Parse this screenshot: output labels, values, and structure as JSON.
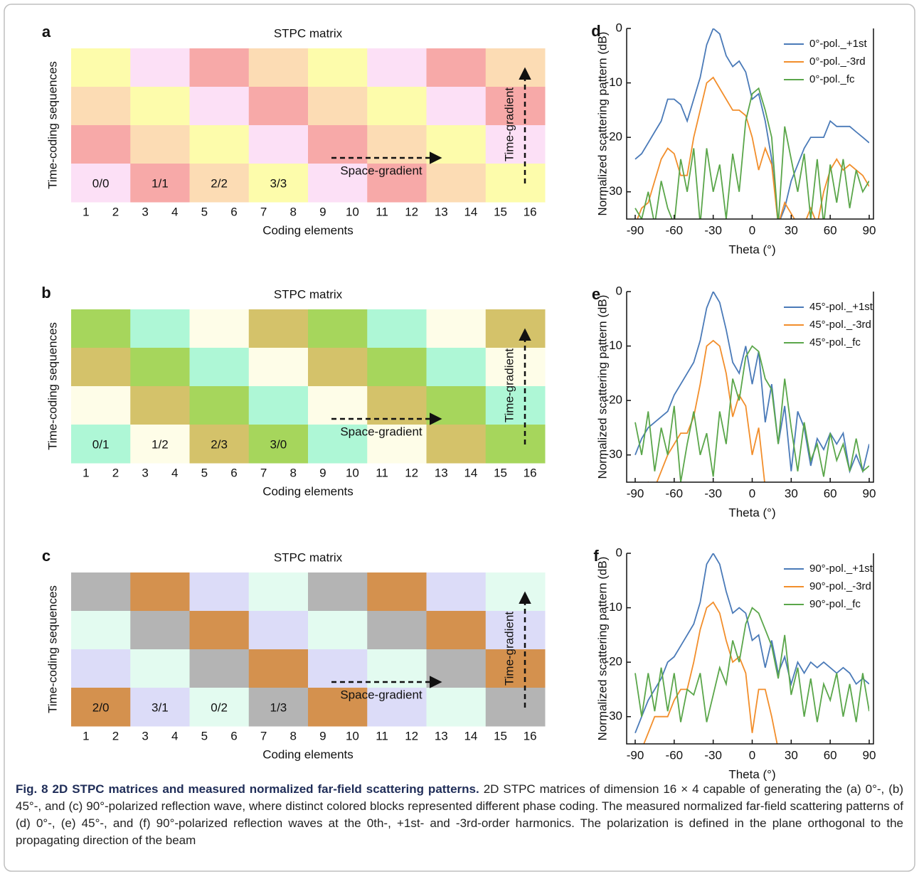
{
  "chart_data": [
    {
      "type": "matrix",
      "panel": "a",
      "title": "STPC matrix",
      "xlabel": "Coding elements",
      "ylabel": "Time-coding sequences",
      "xticks": [
        1,
        2,
        3,
        4,
        5,
        6,
        7,
        8,
        9,
        10,
        11,
        12,
        13,
        14,
        15,
        16
      ],
      "row_colors": [
        [
          "#fdfcab",
          "#fce0f6",
          "#f7a9a8",
          "#fcdcb4",
          "#fdfcab",
          "#fce0f6",
          "#f7a9a8",
          "#fcdcb4"
        ],
        [
          "#fcdcb4",
          "#fdfcab",
          "#fce0f6",
          "#f7a9a8",
          "#fcdcb4",
          "#fdfcab",
          "#fce0f6",
          "#f7a9a8"
        ],
        [
          "#f7a9a8",
          "#fcdcb4",
          "#fdfcab",
          "#fce0f6",
          "#f7a9a8",
          "#fcdcb4",
          "#fdfcab",
          "#fce0f6"
        ],
        [
          "#fce0f6",
          "#f7a9a8",
          "#fcdcb4",
          "#fdfcab",
          "#fce0f6",
          "#f7a9a8",
          "#fcdcb4",
          "#fdfcab"
        ]
      ],
      "cell_labels": [
        "0/0",
        "1/1",
        "2/2",
        "3/3"
      ],
      "space_label": "Space-gradient",
      "time_label": "Time-gradient"
    },
    {
      "type": "matrix",
      "panel": "b",
      "title": "STPC matrix",
      "xlabel": "Coding elements",
      "ylabel": "Time-coding sequences",
      "xticks": [
        1,
        2,
        3,
        4,
        5,
        6,
        7,
        8,
        9,
        10,
        11,
        12,
        13,
        14,
        15,
        16
      ],
      "row_colors": [
        [
          "#a6d65c",
          "#aef7d6",
          "#fefde8",
          "#d4c26a",
          "#a6d65c",
          "#aef7d6",
          "#fefde8",
          "#d4c26a"
        ],
        [
          "#d4c26a",
          "#a6d65c",
          "#aef7d6",
          "#fefde8",
          "#d4c26a",
          "#a6d65c",
          "#aef7d6",
          "#fefde8"
        ],
        [
          "#fefde8",
          "#d4c26a",
          "#a6d65c",
          "#aef7d6",
          "#fefde8",
          "#d4c26a",
          "#a6d65c",
          "#aef7d6"
        ],
        [
          "#aef7d6",
          "#fefde8",
          "#d4c26a",
          "#a6d65c",
          "#aef7d6",
          "#fefde8",
          "#d4c26a",
          "#a6d65c"
        ]
      ],
      "cell_labels": [
        "0/1",
        "1/2",
        "2/3",
        "3/0"
      ],
      "space_label": "Space-gradient",
      "time_label": "Time-gradient"
    },
    {
      "type": "matrix",
      "panel": "c",
      "title": "STPC matrix",
      "xlabel": "Coding elements",
      "ylabel": "Time-coding sequences",
      "xticks": [
        1,
        2,
        3,
        4,
        5,
        6,
        7,
        8,
        9,
        10,
        11,
        12,
        13,
        14,
        15,
        16
      ],
      "row_colors": [
        [
          "#b4b4b4",
          "#d4914e",
          "#dcdcf8",
          "#e3fbf0",
          "#b4b4b4",
          "#d4914e",
          "#dcdcf8",
          "#e3fbf0"
        ],
        [
          "#e3fbf0",
          "#b4b4b4",
          "#d4914e",
          "#dcdcf8",
          "#e3fbf0",
          "#b4b4b4",
          "#d4914e",
          "#dcdcf8"
        ],
        [
          "#dcdcf8",
          "#e3fbf0",
          "#b4b4b4",
          "#d4914e",
          "#dcdcf8",
          "#e3fbf0",
          "#b4b4b4",
          "#d4914e"
        ],
        [
          "#d4914e",
          "#dcdcf8",
          "#e3fbf0",
          "#b4b4b4",
          "#d4914e",
          "#dcdcf8",
          "#e3fbf0",
          "#b4b4b4"
        ]
      ],
      "cell_labels": [
        "2/0",
        "3/1",
        "0/2",
        "1/3"
      ],
      "space_label": "Space-gradient",
      "time_label": "Time-gradient"
    },
    {
      "type": "line",
      "panel": "d",
      "xlabel": "Theta (°)",
      "ylabel": "Normalized scattering pattern (dB)",
      "xlim": [
        -90,
        90
      ],
      "xticks": [
        -90,
        -60,
        -30,
        0,
        30,
        60,
        90
      ],
      "ylim": [
        -35,
        0
      ],
      "yticks": [
        0,
        -10,
        -20,
        -30
      ],
      "legend": "upper right",
      "x": [
        -90,
        -85,
        -80,
        -75,
        -70,
        -65,
        -60,
        -55,
        -50,
        -45,
        -40,
        -35,
        -30,
        -25,
        -20,
        -15,
        -10,
        -5,
        0,
        5,
        10,
        15,
        20,
        25,
        30,
        35,
        40,
        45,
        50,
        55,
        60,
        65,
        70,
        75,
        80,
        85,
        90
      ],
      "series": [
        {
          "name": "0°-pol._+1st",
          "color": "#4a7ab8",
          "values": [
            -24,
            -23,
            -21,
            -19,
            -17,
            -13,
            -13,
            -14,
            -17,
            -13,
            -9,
            -3,
            0,
            -1,
            -5,
            -7,
            -6,
            -8,
            -13,
            -12,
            -17,
            -24,
            -36,
            -33,
            -28,
            -25,
            -22,
            -20,
            -20,
            -20,
            -17,
            -18,
            -18,
            -18,
            -19,
            -20,
            -21
          ]
        },
        {
          "name": "0°-pol._-3rd",
          "color": "#f28e2b",
          "values": [
            -36,
            -33,
            -32,
            -28,
            -24,
            -22,
            -23,
            -27,
            -27,
            -20,
            -15,
            -10,
            -9,
            -11,
            -13,
            -15,
            -15,
            -16,
            -20,
            -26,
            -22,
            -25,
            -36,
            -32,
            -34,
            -36,
            -36,
            -33,
            -36,
            -30,
            -26,
            -24,
            -26,
            -25,
            -26,
            -27,
            -29
          ]
        },
        {
          "name": "0°-pol._fc",
          "color": "#5aa64a",
          "values": [
            -33,
            -35,
            -30,
            -36,
            -28,
            -33,
            -36,
            -24,
            -30,
            -22,
            -36,
            -22,
            -30,
            -25,
            -35,
            -23,
            -30,
            -17,
            -12,
            -11,
            -15,
            -20,
            -36,
            -18,
            -24,
            -30,
            -23,
            -35,
            -24,
            -36,
            -25,
            -32,
            -24,
            -33,
            -26,
            -30,
            -28
          ]
        }
      ]
    },
    {
      "type": "line",
      "panel": "e",
      "xlabel": "Theta (°)",
      "ylabel": "Normalized scattering pattern (dB)",
      "xlim": [
        -90,
        90
      ],
      "xticks": [
        -90,
        -60,
        -30,
        0,
        30,
        60,
        90
      ],
      "ylim": [
        -35,
        0
      ],
      "yticks": [
        0,
        -10,
        -20,
        -30
      ],
      "legend": "upper right",
      "x": [
        -90,
        -85,
        -80,
        -75,
        -70,
        -65,
        -60,
        -55,
        -50,
        -45,
        -40,
        -35,
        -30,
        -25,
        -20,
        -15,
        -10,
        -5,
        0,
        5,
        10,
        15,
        20,
        25,
        30,
        35,
        40,
        45,
        50,
        55,
        60,
        65,
        70,
        75,
        80,
        85,
        90
      ],
      "series": [
        {
          "name": "45°-pol._+1st",
          "color": "#4a7ab8",
          "values": [
            -30,
            -27,
            -25,
            -24,
            -23,
            -22,
            -19,
            -17,
            -15,
            -13,
            -9,
            -3,
            0,
            -2,
            -7,
            -13,
            -15,
            -10,
            -17,
            -11,
            -24,
            -17,
            -28,
            -21,
            -33,
            -22,
            -25,
            -32,
            -27,
            -29,
            -26,
            -28,
            -26,
            -33,
            -30,
            -33,
            -28
          ]
        },
        {
          "name": "45°-pol._-3rd",
          "color": "#f28e2b",
          "values": [
            -36,
            -36,
            -35,
            -36,
            -33,
            -30,
            -28,
            -26,
            -26,
            -23,
            -17,
            -10,
            -9,
            -10,
            -15,
            -23,
            -19,
            -21,
            -30,
            -25,
            -36,
            -36,
            -36,
            -36,
            -36,
            -36,
            -36,
            -36,
            -36,
            -36,
            -36,
            -36,
            -36,
            -36,
            -36,
            -36,
            -36
          ]
        },
        {
          "name": "45°-pol._fc",
          "color": "#5aa64a",
          "values": [
            -24,
            -30,
            -22,
            -33,
            -25,
            -30,
            -21,
            -35,
            -28,
            -22,
            -30,
            -26,
            -34,
            -22,
            -28,
            -16,
            -20,
            -12,
            -10,
            -11,
            -16,
            -18,
            -28,
            -16,
            -25,
            -33,
            -24,
            -31,
            -28,
            -34,
            -26,
            -31,
            -28,
            -33,
            -27,
            -33,
            -32
          ]
        }
      ]
    },
    {
      "type": "line",
      "panel": "f",
      "xlabel": "Theta (°)",
      "ylabel": "Normalized scattering pattern (dB)",
      "xlim": [
        -90,
        90
      ],
      "xticks": [
        -90,
        -60,
        -30,
        0,
        30,
        60,
        90
      ],
      "ylim": [
        -35,
        0
      ],
      "yticks": [
        0,
        -10,
        -20,
        -30
      ],
      "legend": "upper right",
      "x": [
        -90,
        -85,
        -80,
        -75,
        -70,
        -65,
        -60,
        -55,
        -50,
        -45,
        -40,
        -35,
        -30,
        -25,
        -20,
        -15,
        -10,
        -5,
        0,
        5,
        10,
        15,
        20,
        25,
        30,
        35,
        40,
        45,
        50,
        55,
        60,
        65,
        70,
        75,
        80,
        85,
        90
      ],
      "series": [
        {
          "name": "90°-pol._+1st",
          "color": "#4a7ab8",
          "values": [
            -33,
            -30,
            -27,
            -25,
            -23,
            -20,
            -19,
            -17,
            -15,
            -13,
            -9,
            -2,
            0,
            -2,
            -7,
            -11,
            -10,
            -11,
            -16,
            -15,
            -21,
            -16,
            -22,
            -19,
            -24,
            -20,
            -22,
            -20,
            -21,
            -20,
            -21,
            -22,
            -21,
            -22,
            -24,
            -23,
            -24
          ]
        },
        {
          "name": "90°-pol._-3rd",
          "color": "#f28e2b",
          "values": [
            -36,
            -36,
            -33,
            -30,
            -30,
            -30,
            -27,
            -25,
            -25,
            -20,
            -14,
            -10,
            -9,
            -11,
            -16,
            -20,
            -19,
            -22,
            -33,
            -25,
            -25,
            -30,
            -36,
            -36,
            -36,
            -36,
            -36,
            -36,
            -36,
            -36,
            -36,
            -36,
            -36,
            -36,
            -36,
            -36,
            -36
          ]
        },
        {
          "name": "90°-pol._fc",
          "color": "#5aa64a",
          "values": [
            -22,
            -30,
            -22,
            -29,
            -21,
            -29,
            -22,
            -31,
            -25,
            -26,
            -22,
            -31,
            -26,
            -21,
            -24,
            -16,
            -20,
            -13,
            -10,
            -11,
            -14,
            -17,
            -23,
            -15,
            -26,
            -21,
            -30,
            -23,
            -31,
            -24,
            -27,
            -22,
            -30,
            -24,
            -31,
            -22,
            -29
          ]
        }
      ]
    }
  ],
  "caption": {
    "title": "Fig. 8 2D STPC matrices and measured normalized far-field scattering patterns.",
    "text": "2D STPC matrices of dimension 16 × 4 capable of generating the (a) 0°-, (b) 45°-, and (c) 90°-polarized reflection wave, where distinct colored blocks represented different phase coding. The measured normalized far-field scattering patterns of (d) 0°-, (e) 45°-, and (f) 90°-polarized reflection waves at the 0th-, +1st- and -3rd-order harmonics. The polarization is defined in the plane orthogonal to the propagating direction of the beam"
  }
}
